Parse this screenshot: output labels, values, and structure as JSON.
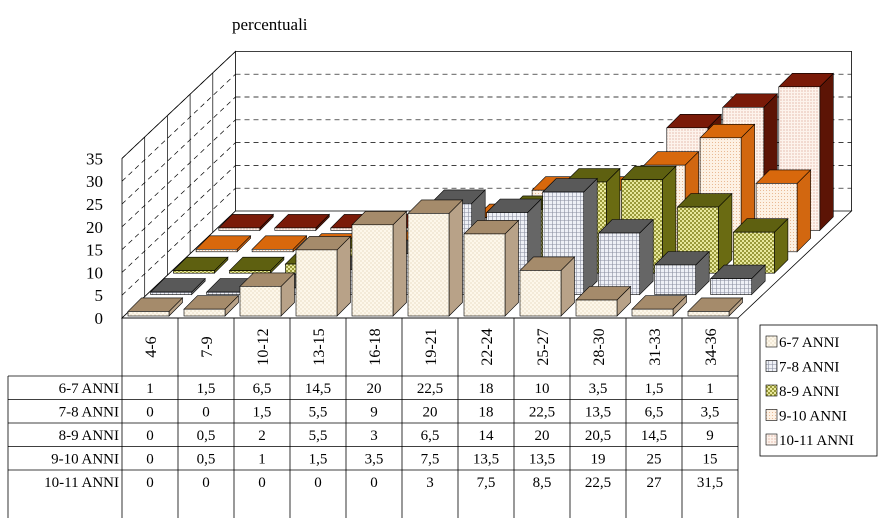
{
  "chart_data": {
    "type": "bar",
    "subtype": "3d-grouped-with-data-table",
    "ylabel": "percentuali",
    "ylim": [
      0,
      35
    ],
    "yticks": [
      0,
      5,
      10,
      15,
      20,
      25,
      30,
      35
    ],
    "grid": true,
    "legend": "right",
    "categories": [
      "4-6",
      "7-9",
      "10-12",
      "13-15",
      "16-18",
      "19-21",
      "22-24",
      "25-27",
      "28-30",
      "31-33",
      "34-36"
    ],
    "series": [
      {
        "name": "6-7 ANNI",
        "values": [
          1,
          1.5,
          6.5,
          14.5,
          20,
          22.5,
          18,
          10,
          3.5,
          1.5,
          1
        ]
      },
      {
        "name": "7-8 ANNI",
        "values": [
          0,
          0,
          1.5,
          5.5,
          9,
          20,
          18,
          22.5,
          13.5,
          6.5,
          3.5
        ]
      },
      {
        "name": "8-9 ANNI",
        "values": [
          0,
          0.5,
          2,
          5.5,
          3,
          6.5,
          14,
          20,
          20.5,
          14.5,
          9
        ]
      },
      {
        "name": "9-10 ANNI",
        "values": [
          0,
          0.5,
          1,
          1.5,
          3.5,
          7.5,
          13.5,
          13.5,
          19,
          25,
          15
        ]
      },
      {
        "name": "10-11 ANNI",
        "values": [
          0,
          0,
          0,
          0,
          0,
          3,
          7.5,
          8.5,
          22.5,
          27,
          31.5
        ]
      }
    ],
    "table_rows": [
      {
        "label": "6-7 ANNI",
        "cells": [
          "1",
          "1,5",
          "6,5",
          "14,5",
          "20",
          "22,5",
          "18",
          "10",
          "3,5",
          "1,5",
          "1"
        ]
      },
      {
        "label": "7-8 ANNI",
        "cells": [
          "0",
          "0",
          "1,5",
          "5,5",
          "9",
          "20",
          "18",
          "22,5",
          "13,5",
          "6,5",
          "3,5"
        ]
      },
      {
        "label": "8-9 ANNI",
        "cells": [
          "0",
          "0,5",
          "2",
          "5,5",
          "3",
          "6,5",
          "14",
          "20",
          "20,5",
          "14,5",
          "9"
        ]
      },
      {
        "label": "9-10 ANNI",
        "cells": [
          "0",
          "0,5",
          "1",
          "1,5",
          "3,5",
          "7,5",
          "13,5",
          "13,5",
          "19",
          "25",
          "15"
        ]
      },
      {
        "label": "10-11 ANNI",
        "cells": [
          "0",
          "0",
          "0",
          "0",
          "0",
          "3",
          "7,5",
          "8,5",
          "22,5",
          "27",
          "31,5"
        ]
      }
    ],
    "colors": {
      "6-7 ANNI": {
        "top": "#a58b6b",
        "front": "#fdf7ea",
        "side": "#b8a288",
        "pattern": "dots"
      },
      "7-8 ANNI": {
        "top": "#595959",
        "front": "#e4e8f2",
        "side": "#666666",
        "pattern": "grid"
      },
      "8-9 ANNI": {
        "top": "#5e6010",
        "front": "#e6e59a",
        "side": "#6a6b12",
        "pattern": "check"
      },
      "9-10 ANNI": {
        "top": "#d8680c",
        "front": "#fdeedd",
        "side": "#d26710",
        "pattern": "fine"
      },
      "10-11 ANNI": {
        "top": "#7a1a08",
        "front": "#fdf2ea",
        "side": "#5c1405",
        "pattern": "dense"
      }
    }
  }
}
